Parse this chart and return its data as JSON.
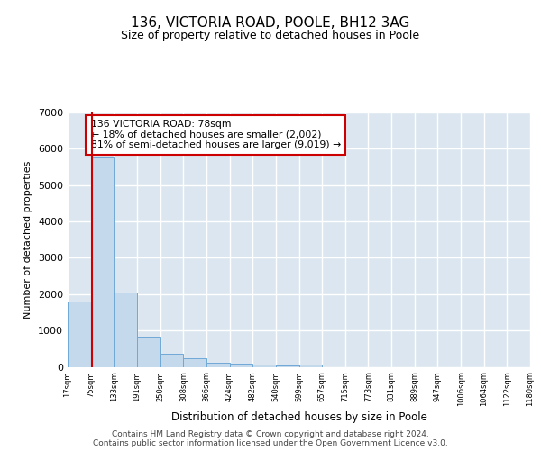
{
  "title": "136, VICTORIA ROAD, POOLE, BH12 3AG",
  "subtitle": "Size of property relative to detached houses in Poole",
  "xlabel": "Distribution of detached houses by size in Poole",
  "ylabel": "Number of detached properties",
  "bin_edges": [
    17,
    75,
    133,
    191,
    250,
    308,
    366,
    424,
    482,
    540,
    599,
    657,
    715,
    773,
    831,
    889,
    947,
    1006,
    1064,
    1122,
    1180
  ],
  "bar_heights": [
    1800,
    5750,
    2050,
    820,
    370,
    240,
    120,
    90,
    60,
    30,
    50,
    0,
    0,
    0,
    0,
    0,
    0,
    0,
    0,
    0
  ],
  "bar_color": "#c5d9ed",
  "bar_edge_color": "#6fa8d6",
  "property_size": 78,
  "vline_color": "#cc0000",
  "annotation_text": "136 VICTORIA ROAD: 78sqm\n← 18% of detached houses are smaller (2,002)\n81% of semi-detached houses are larger (9,019) →",
  "annotation_box_color": "#ffffff",
  "annotation_box_edge_color": "#cc0000",
  "ylim": [
    0,
    7000
  ],
  "yticks": [
    0,
    1000,
    2000,
    3000,
    4000,
    5000,
    6000,
    7000
  ],
  "bg_color": "#dce6f0",
  "footer_line1": "Contains HM Land Registry data © Crown copyright and database right 2024.",
  "footer_line2": "Contains public sector information licensed under the Open Government Licence v3.0."
}
